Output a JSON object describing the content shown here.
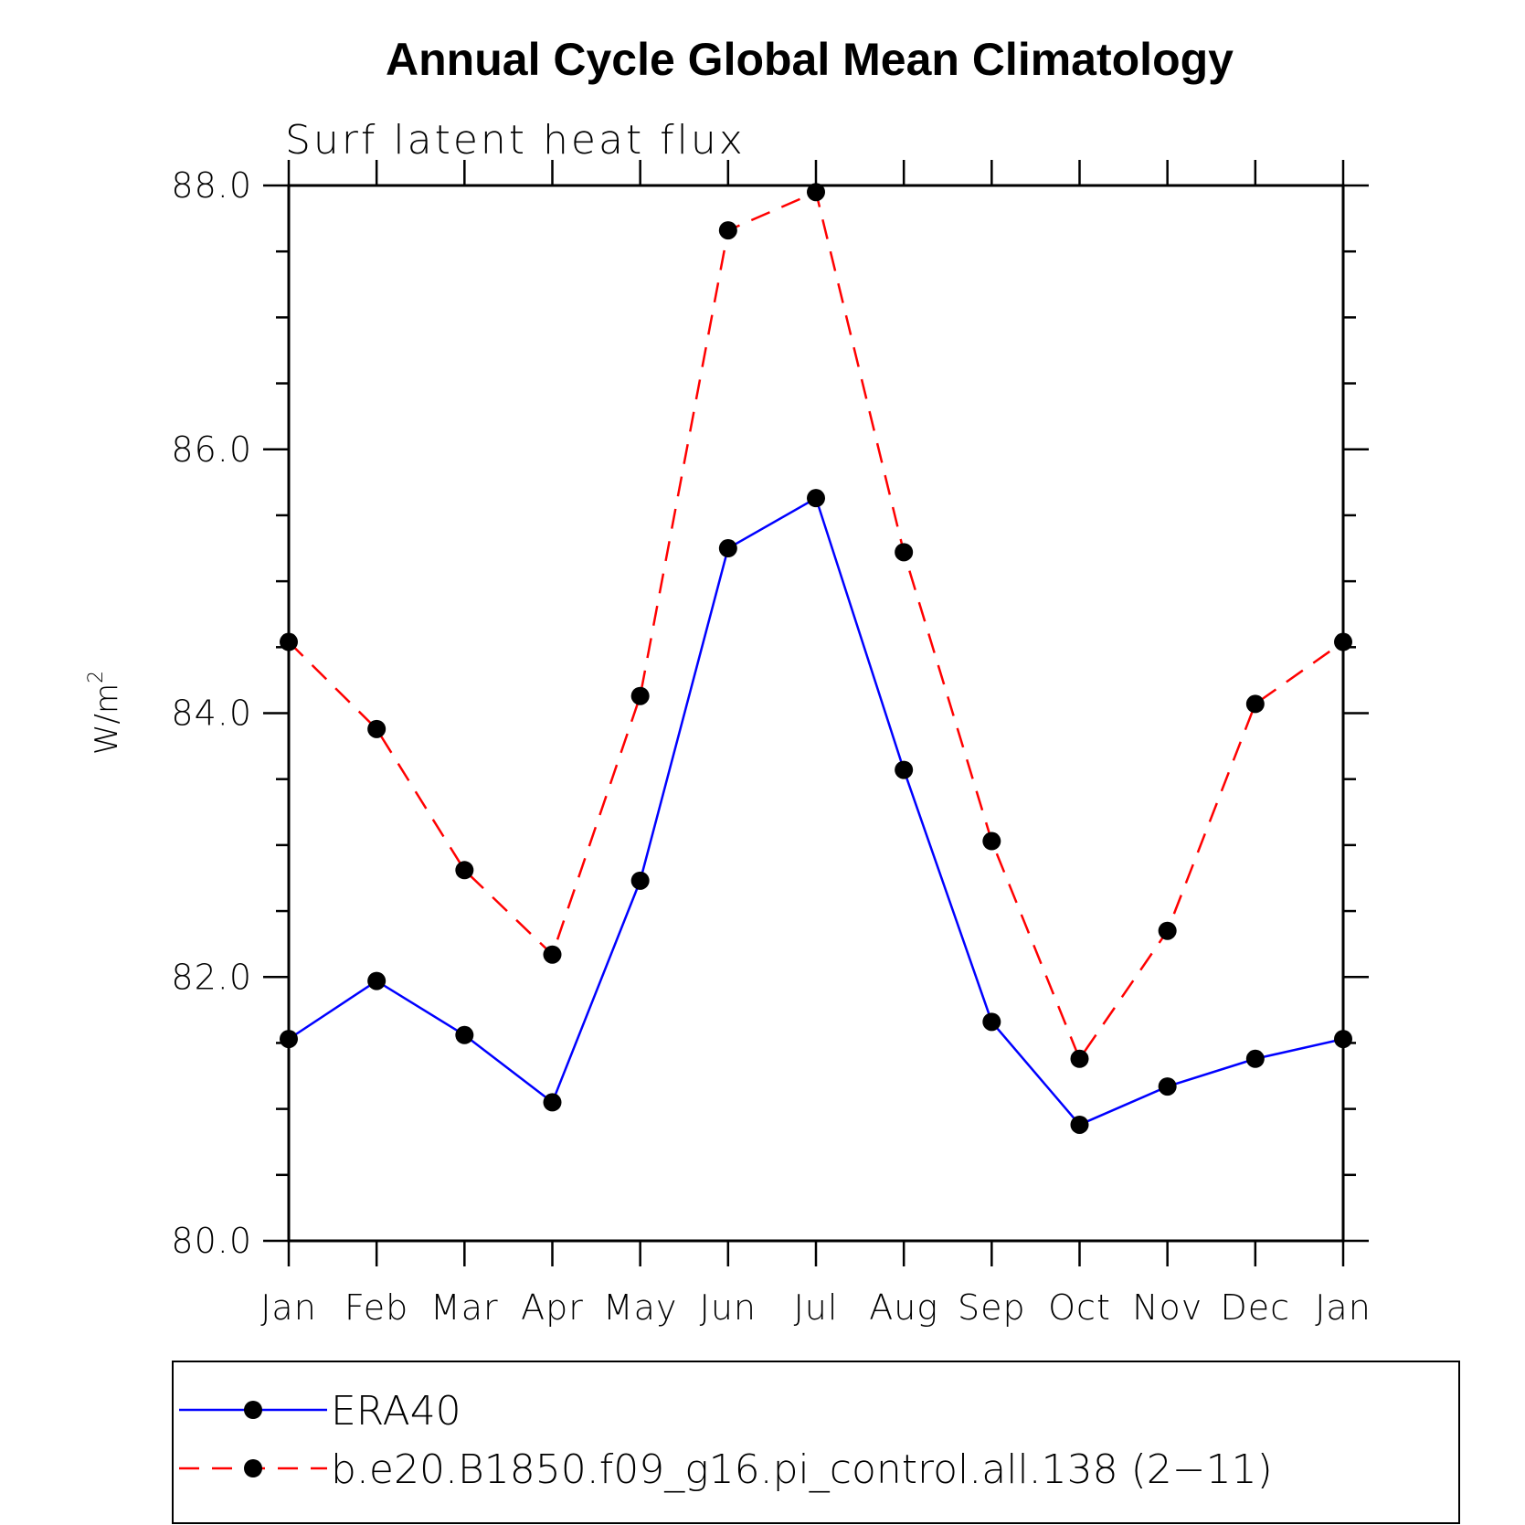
{
  "chart_data": {
    "type": "line",
    "title": "Annual Cycle Global Mean Climatology",
    "subtitle": "Surf latent heat flux",
    "ylabel": "W/m",
    "ylabel_superscript": "2",
    "xlabel": "",
    "categories": [
      "Jan",
      "Feb",
      "Mar",
      "Apr",
      "May",
      "Jun",
      "Jul",
      "Aug",
      "Sep",
      "Oct",
      "Nov",
      "Dec",
      "Jan"
    ],
    "ylim": [
      80.0,
      88.0
    ],
    "yticks": [
      "80.0",
      "82.0",
      "84.0",
      "86.0",
      "88.0"
    ],
    "ytick_values": [
      80.0,
      82.0,
      84.0,
      86.0,
      88.0
    ],
    "minor_ytick_step": 0.5,
    "grid": false,
    "legend_position": "bottom",
    "series": [
      {
        "name": "ERA40",
        "color": "#0000ff",
        "dashed": false,
        "values": [
          81.53,
          81.97,
          81.56,
          81.05,
          82.73,
          85.25,
          85.63,
          83.57,
          81.66,
          80.88,
          81.17,
          81.38,
          81.53
        ]
      },
      {
        "name": "b.e20.B1850.f09_g16.pi_control.all.138 (2−11)",
        "color": "#ff0000",
        "dashed": true,
        "values": [
          84.54,
          83.88,
          82.81,
          82.17,
          84.13,
          87.66,
          87.95,
          85.22,
          83.03,
          81.38,
          82.35,
          84.07,
          84.54
        ]
      }
    ]
  }
}
